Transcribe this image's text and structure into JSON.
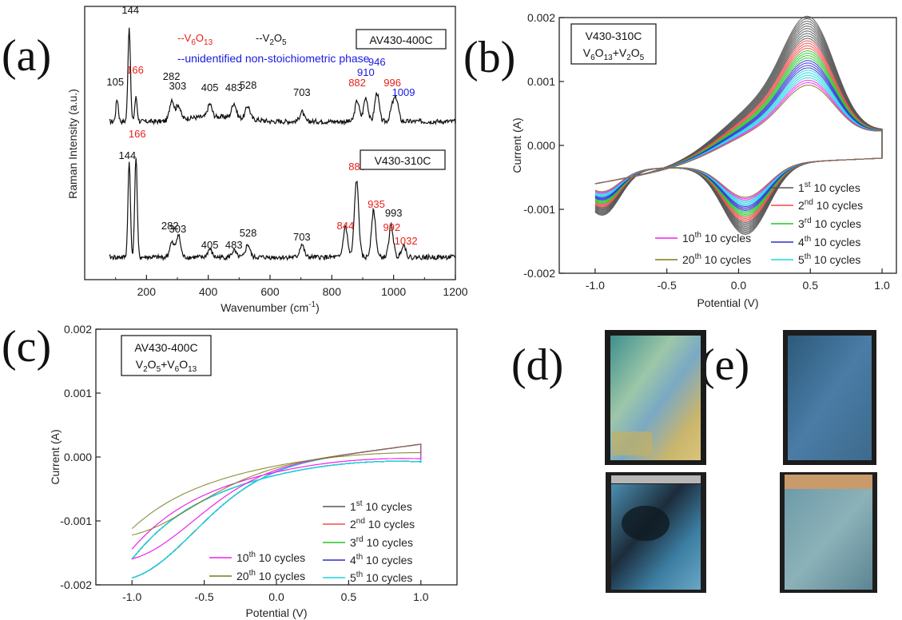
{
  "panels": {
    "a": "(a)",
    "b": "(b)",
    "c": "(c)",
    "d": "(d)",
    "e": "(e)"
  },
  "colors": {
    "v6o13": "#e8201a",
    "v2o5": "#111111",
    "unknown": "#1a1ae0",
    "c1": "#555555",
    "c2": "#f24c4c",
    "c3": "#22c722",
    "c4": "#2b2bd6",
    "c5": "#19d6e0",
    "c10": "#ee22ee",
    "c20": "#7a7a18"
  },
  "chart_data": [
    {
      "id": "a",
      "type": "line",
      "xlabel": "Wavenumber (cm",
      "xlabel_sup": "-1",
      "xlabel_end": ")",
      "ylabel": "Raman Intensity (a.u.)",
      "xlim": [
        0,
        1200
      ],
      "xticks": [
        "200",
        "400",
        "600",
        "800",
        "1000",
        "1200"
      ],
      "legend": {
        "v6o13_prefix": "--V",
        "v6o13_sub1": "6",
        "v6o13_mid": "O",
        "v6o13_sub2": "13",
        "v2o5_prefix": "--V",
        "v2o5_sub1": "2",
        "v2o5_mid": "O",
        "v2o5_sub2": "5",
        "unknown": "--unidentified non-stoichiometric phase"
      },
      "series": [
        {
          "name": "AV430-400C",
          "peaks": [
            {
              "x": 105,
              "label": "105",
              "phase": "v2o5"
            },
            {
              "x": 144,
              "label": "144",
              "phase": "v2o5"
            },
            {
              "x": 166,
              "label": "166",
              "phase": "v6o13"
            },
            {
              "x": 282,
              "label": "282",
              "phase": "v2o5"
            },
            {
              "x": 303,
              "label": "303",
              "phase": "v2o5"
            },
            {
              "x": 405,
              "label": "405",
              "phase": "v2o5"
            },
            {
              "x": 483,
              "label": "483",
              "phase": "v2o5"
            },
            {
              "x": 528,
              "label": "528",
              "phase": "v2o5"
            },
            {
              "x": 703,
              "label": "703",
              "phase": "v2o5"
            },
            {
              "x": 882,
              "label": "882",
              "phase": "v6o13"
            },
            {
              "x": 910,
              "label": "910",
              "phase": "unknown"
            },
            {
              "x": 946,
              "label": "946",
              "phase": "unknown"
            },
            {
              "x": 996,
              "label": "996",
              "phase": "v6o13"
            },
            {
              "x": 1009,
              "label": "1009",
              "phase": "unknown"
            }
          ]
        },
        {
          "name": "V430-310C",
          "peaks": [
            {
              "x": 144,
              "label": "144",
              "phase": "v2o5"
            },
            {
              "x": 166,
              "label": "166",
              "phase": "v6o13"
            },
            {
              "x": 282,
              "label": "282",
              "phase": "v2o5"
            },
            {
              "x": 303,
              "label": "303",
              "phase": "v2o5"
            },
            {
              "x": 405,
              "label": "405",
              "phase": "v2o5"
            },
            {
              "x": 483,
              "label": "483",
              "phase": "v2o5"
            },
            {
              "x": 528,
              "label": "528",
              "phase": "v2o5"
            },
            {
              "x": 703,
              "label": "703",
              "phase": "v2o5"
            },
            {
              "x": 844,
              "label": "844",
              "phase": "v6o13"
            },
            {
              "x": 880,
              "label": "880",
              "phase": "v6o13"
            },
            {
              "x": 935,
              "label": "935",
              "phase": "v6o13"
            },
            {
              "x": 992,
              "label": "992",
              "phase": "v6o13"
            },
            {
              "x": 993,
              "label": "993",
              "phase": "v2o5"
            },
            {
              "x": 1032,
              "label": "1032",
              "phase": "v6o13"
            }
          ]
        }
      ]
    },
    {
      "id": "b",
      "type": "line",
      "box_title": "V430-310C",
      "box_sub": {
        "a": "V",
        "a_sub": "6",
        "b": "O",
        "b_sub": "13",
        "c": "+V",
        "c_sub": "2",
        "d": "O",
        "d_sub": "5"
      },
      "xlabel": "Potential (V)",
      "ylabel": "Current (A)",
      "xlim": [
        -1.25,
        1.1
      ],
      "ylim": [
        -0.002,
        0.002
      ],
      "xticks": [
        "-1.0",
        "-0.5",
        "0.0",
        "0.5",
        "1.0"
      ],
      "yticks": [
        "-0.002",
        "-0.001",
        "0.000",
        "0.001",
        "0.002"
      ],
      "legend_items": [
        {
          "num": "1",
          "sup": "st",
          "rest": " 10 cycles",
          "color": "c1"
        },
        {
          "num": "2",
          "sup": "nd",
          "rest": " 10 cycles",
          "color": "c2"
        },
        {
          "num": "3",
          "sup": "rd",
          "rest": " 10 cycles",
          "color": "c3"
        },
        {
          "num": "4",
          "sup": "th",
          "rest": " 10 cycles",
          "color": "c4"
        },
        {
          "num": "5",
          "sup": "th",
          "rest": " 10 cycles",
          "color": "c5"
        },
        {
          "num": "10",
          "sup": "th",
          "rest": " 10 cycles",
          "color": "c10"
        },
        {
          "num": "20",
          "sup": "th",
          "rest": " 10 cycles",
          "color": "c20"
        }
      ]
    },
    {
      "id": "c",
      "type": "line",
      "box_title": "AV430-400C",
      "box_sub": {
        "a": "V",
        "a_sub": "2",
        "b": "O",
        "b_sub": "5",
        "c": "+V",
        "c_sub": "6",
        "d": "O",
        "d_sub": "13"
      },
      "xlabel": "Potential (V)",
      "ylabel": "Current (A)",
      "xlim": [
        -1.25,
        1.25
      ],
      "ylim": [
        -0.002,
        0.002
      ],
      "xticks": [
        "-1.0",
        "-0.5",
        "0.0",
        "0.5",
        "1.0"
      ],
      "yticks": [
        "-0.002",
        "-0.001",
        "0.000",
        "0.001",
        "0.002"
      ],
      "legend_items": [
        {
          "num": "1",
          "sup": "st",
          "rest": " 10 cycles",
          "color": "c1"
        },
        {
          "num": "2",
          "sup": "nd",
          "rest": " 10 cycles",
          "color": "c2"
        },
        {
          "num": "3",
          "sup": "rd",
          "rest": " 10 cycles",
          "color": "c3"
        },
        {
          "num": "4",
          "sup": "th",
          "rest": " 10 cycles",
          "color": "c4"
        },
        {
          "num": "5",
          "sup": "th",
          "rest": " 10 cycles",
          "color": "c5"
        },
        {
          "num": "10",
          "sup": "th",
          "rest": " 10 cycles",
          "color": "c10"
        },
        {
          "num": "20",
          "sup": "th",
          "rest": " 10 cycles",
          "color": "c20"
        }
      ]
    }
  ]
}
